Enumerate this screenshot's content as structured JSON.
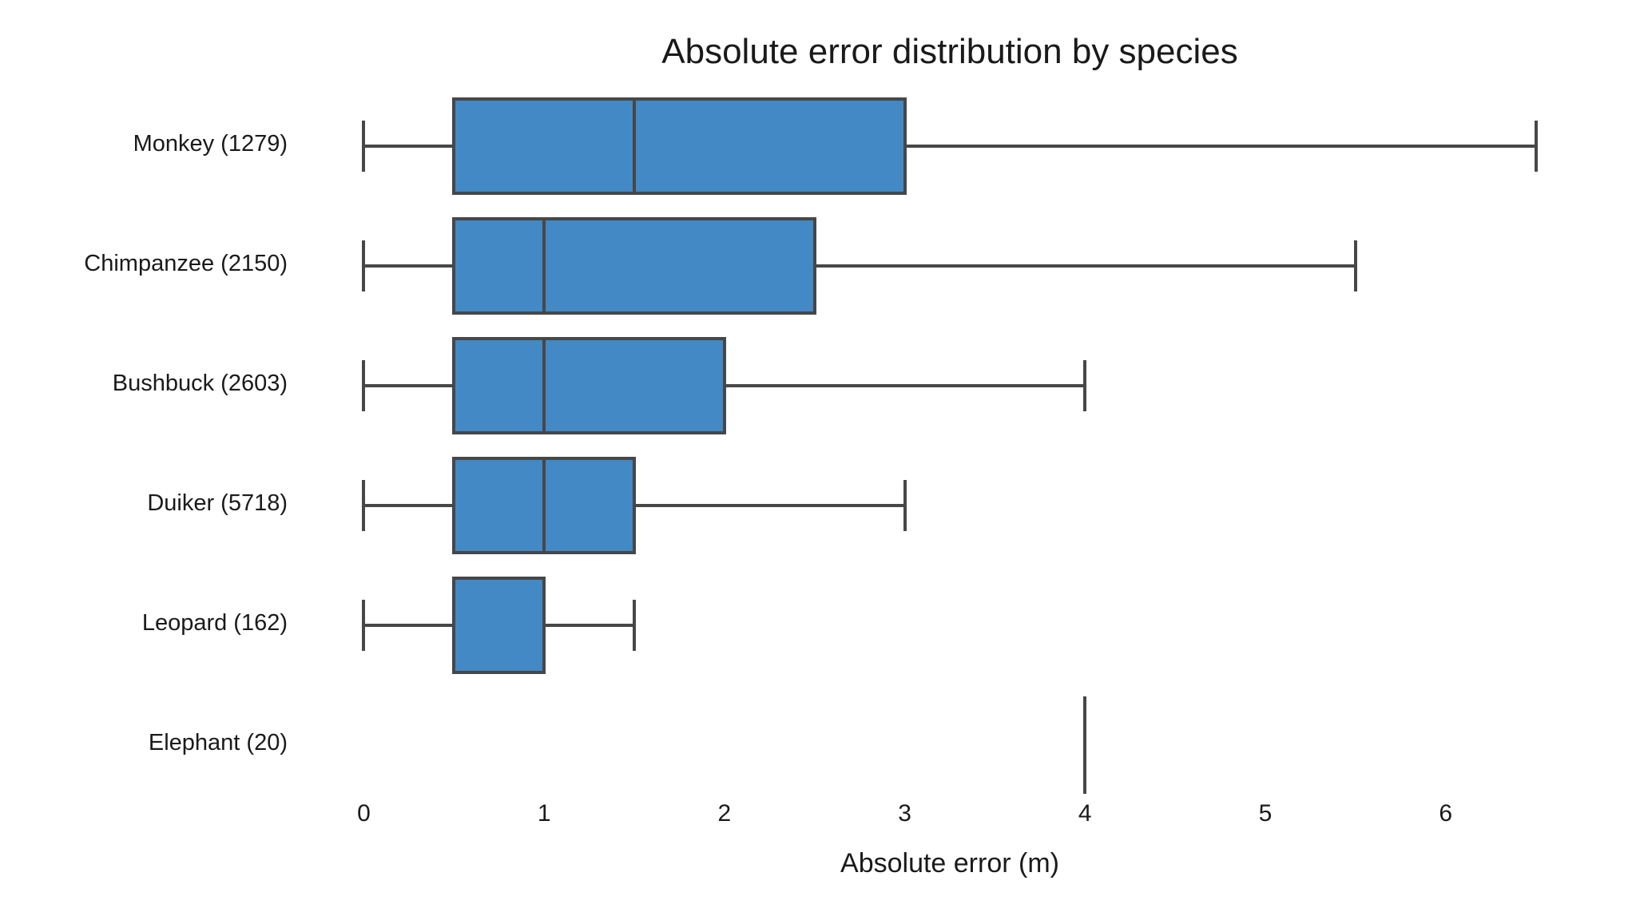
{
  "chart_data": {
    "type": "boxplot",
    "orientation": "horizontal",
    "title": "Absolute error distribution by species",
    "xlabel": "Absolute error (m)",
    "xticks": [
      0,
      1,
      2,
      3,
      4,
      5,
      6
    ],
    "xlim": [
      -0.33,
      6.83
    ],
    "grid": false,
    "legend": "none",
    "colors": {
      "box_fill": "#4289C5",
      "line": "#474747",
      "text": "#1a1a1a",
      "background": "#ffffff"
    },
    "categories": [
      "Monkey (1279)",
      "Chimpanzee (2150)",
      "Bushbuck (2603)",
      "Duiker (5718)",
      "Leopard (162)",
      "Elephant (20)"
    ],
    "series": [
      {
        "label": "Monkey (1279)",
        "whisker_low": 0.0,
        "q1": 0.5,
        "median": 1.5,
        "q3": 3.0,
        "whisker_high": 6.5
      },
      {
        "label": "Chimpanzee (2150)",
        "whisker_low": 0.0,
        "q1": 0.5,
        "median": 1.0,
        "q3": 2.5,
        "whisker_high": 5.5
      },
      {
        "label": "Bushbuck (2603)",
        "whisker_low": 0.0,
        "q1": 0.5,
        "median": 1.0,
        "q3": 2.0,
        "whisker_high": 4.0
      },
      {
        "label": "Duiker (5718)",
        "whisker_low": 0.0,
        "q1": 0.5,
        "median": 1.0,
        "q3": 1.5,
        "whisker_high": 3.0
      },
      {
        "label": "Leopard (162)",
        "whisker_low": 0.0,
        "q1": 0.5,
        "median": 1.0,
        "q3": 1.0,
        "whisker_high": 1.5
      },
      {
        "label": "Elephant (20)",
        "whisker_low": 4.0,
        "q1": 4.0,
        "median": 4.0,
        "q3": 4.0,
        "whisker_high": 4.0
      }
    ]
  }
}
